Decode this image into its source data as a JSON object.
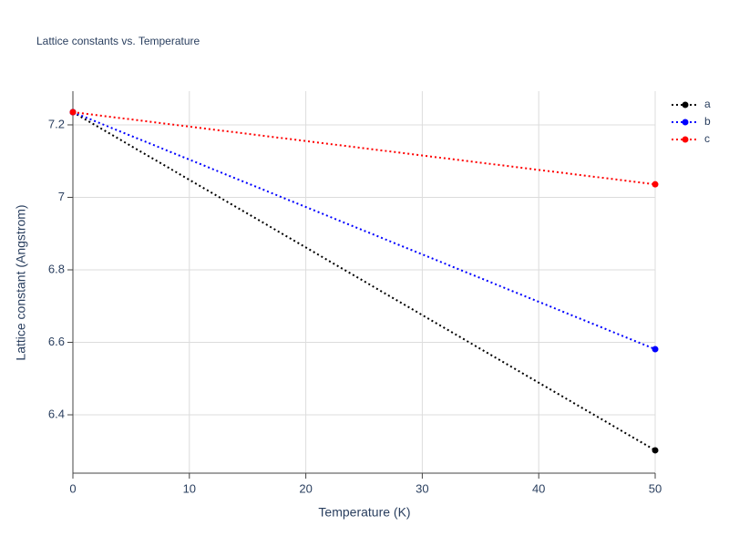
{
  "chart_data": {
    "type": "line",
    "title": "Lattice constants vs. Temperature",
    "x_label": "Temperature (K)",
    "y_label": "Lattice constant (Angstrom)",
    "x": [
      0,
      50
    ],
    "series": [
      {
        "name": "a",
        "color": "#000000",
        "values": [
          7.235,
          6.302
        ]
      },
      {
        "name": "b",
        "color": "#0000ff",
        "values": [
          7.235,
          6.581
        ]
      },
      {
        "name": "c",
        "color": "#ff0000",
        "values": [
          7.235,
          7.036
        ]
      }
    ],
    "xlim": [
      0,
      50
    ],
    "xticks": [
      0,
      10,
      20,
      30,
      40,
      50
    ],
    "ylim": [
      6.239,
      7.293
    ],
    "yticks": [
      6.4,
      6.6,
      6.8,
      7,
      7.2
    ],
    "grid": true,
    "legend": "right"
  }
}
